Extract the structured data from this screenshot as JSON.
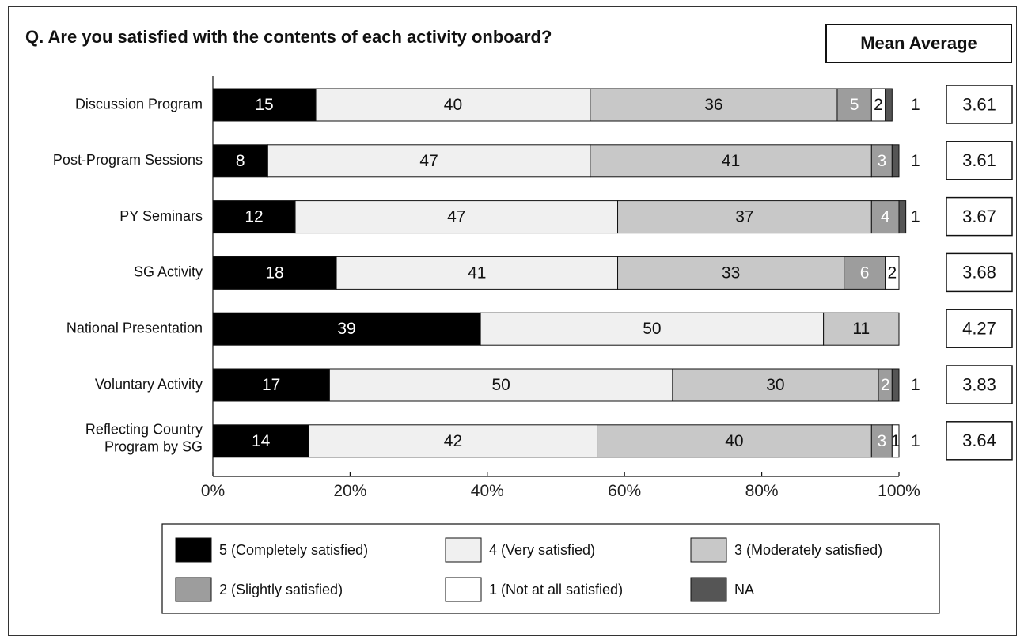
{
  "title": "Q. Are you satisfied with the contents of each activity onboard?",
  "mean_header": "Mean Average",
  "chart_data": {
    "type": "bar",
    "orientation": "horizontal",
    "stacked": true,
    "percent": true,
    "categories": [
      [
        "Discussion Program"
      ],
      [
        "Post-Program Sessions"
      ],
      [
        "PY Seminars"
      ],
      [
        "SG Activity"
      ],
      [
        "National Presentation"
      ],
      [
        "Voluntary Activity"
      ],
      [
        "Reflecting Country",
        "Program by SG"
      ]
    ],
    "series": [
      {
        "name": "5 (Completely satisfied)",
        "color": "#000000",
        "label_color": "#ffffff",
        "values": [
          15,
          8,
          12,
          18,
          39,
          17,
          14
        ]
      },
      {
        "name": "4 (Very satisfied)",
        "color": "#f0f0f0",
        "label_color": "#111111",
        "values": [
          40,
          47,
          47,
          41,
          50,
          50,
          42
        ]
      },
      {
        "name": "3 (Moderately satisfied)",
        "color": "#c8c8c8",
        "label_color": "#111111",
        "values": [
          36,
          41,
          37,
          33,
          11,
          30,
          40
        ]
      },
      {
        "name": "2 (Slightly satisfied)",
        "color": "#9d9d9d",
        "label_color": "#ffffff",
        "values": [
          5,
          3,
          4,
          6,
          0,
          2,
          3
        ]
      },
      {
        "name": "1 (Not at all satisfied)",
        "color": "#ffffff",
        "label_color": "#111111",
        "values": [
          2,
          0,
          0,
          2,
          0,
          0,
          1
        ]
      },
      {
        "name": "NA",
        "color": "#555555",
        "label_color": "#ffffff",
        "values": [
          1,
          1,
          1,
          0,
          0,
          1,
          0
        ]
      }
    ],
    "outside_labels": [
      "1",
      "1",
      "1",
      "",
      "",
      "1",
      "1"
    ],
    "mean_average": [
      "3.61",
      "3.61",
      "3.67",
      "3.68",
      "4.27",
      "3.83",
      "3.64"
    ],
    "x_ticks": [
      "0%",
      "20%",
      "40%",
      "60%",
      "80%",
      "100%"
    ],
    "xlim": [
      0,
      100
    ],
    "legend_position": "bottom"
  }
}
